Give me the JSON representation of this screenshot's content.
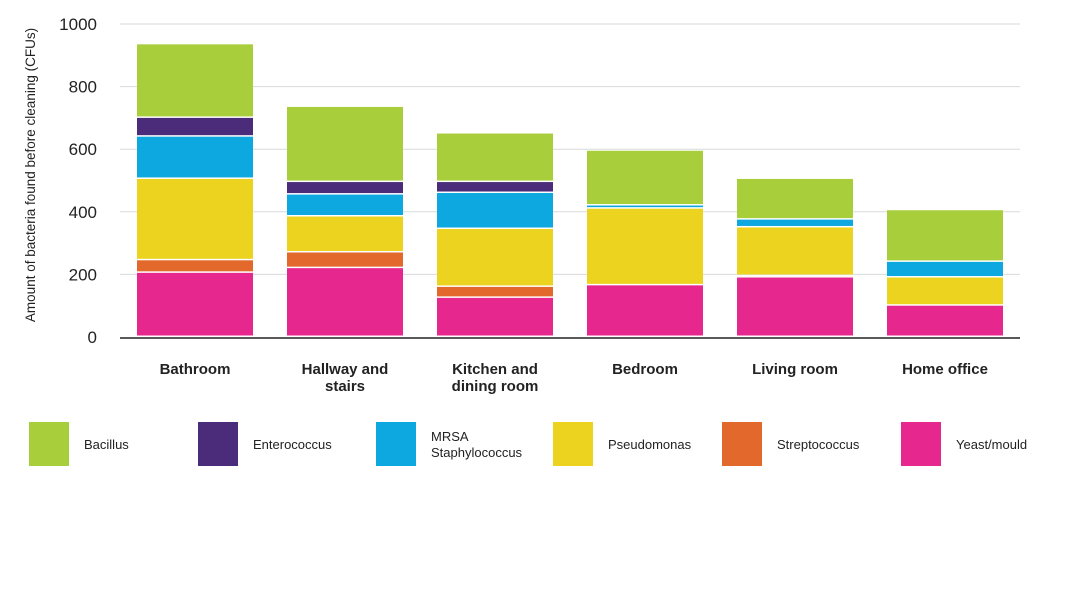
{
  "chart_data": {
    "type": "bar",
    "stacked": true,
    "ylabel": "Amount of bacteria found before cleaning (CFUs)",
    "xlabel": "",
    "ylim": [
      0,
      1000
    ],
    "yticks": [
      0,
      200,
      400,
      600,
      800,
      1000
    ],
    "grid": true,
    "legend_position": "bottom",
    "categories": [
      [
        "Bathroom"
      ],
      [
        "Hallway and",
        "stairs"
      ],
      [
        "Kitchen and",
        "dining room"
      ],
      [
        "Bedroom"
      ],
      [
        "Living room"
      ],
      [
        "Home office"
      ]
    ],
    "series": [
      {
        "name": [
          "Yeast/mould"
        ],
        "color": "#E6288E",
        "values": [
          205,
          220,
          125,
          165,
          190,
          100
        ]
      },
      {
        "name": [
          "Streptococcus"
        ],
        "color": "#E2682C",
        "values": [
          40,
          50,
          35,
          0,
          5,
          0
        ]
      },
      {
        "name": [
          "Pseudomonas"
        ],
        "color": "#EBD31F",
        "values": [
          260,
          115,
          185,
          245,
          155,
          90
        ]
      },
      {
        "name": [
          "MRSA",
          "Staphylococcus"
        ],
        "color": "#0DA8E0",
        "values": [
          135,
          70,
          115,
          10,
          25,
          50
        ]
      },
      {
        "name": [
          "Enterococcus"
        ],
        "color": "#4B2C7A",
        "values": [
          60,
          40,
          35,
          0,
          0,
          0
        ]
      },
      {
        "name": [
          "Bacillus"
        ],
        "color": "#A8CE3B",
        "values": [
          235,
          240,
          155,
          175,
          130,
          165
        ]
      }
    ],
    "legend_order": [
      5,
      4,
      3,
      2,
      1,
      0
    ]
  }
}
